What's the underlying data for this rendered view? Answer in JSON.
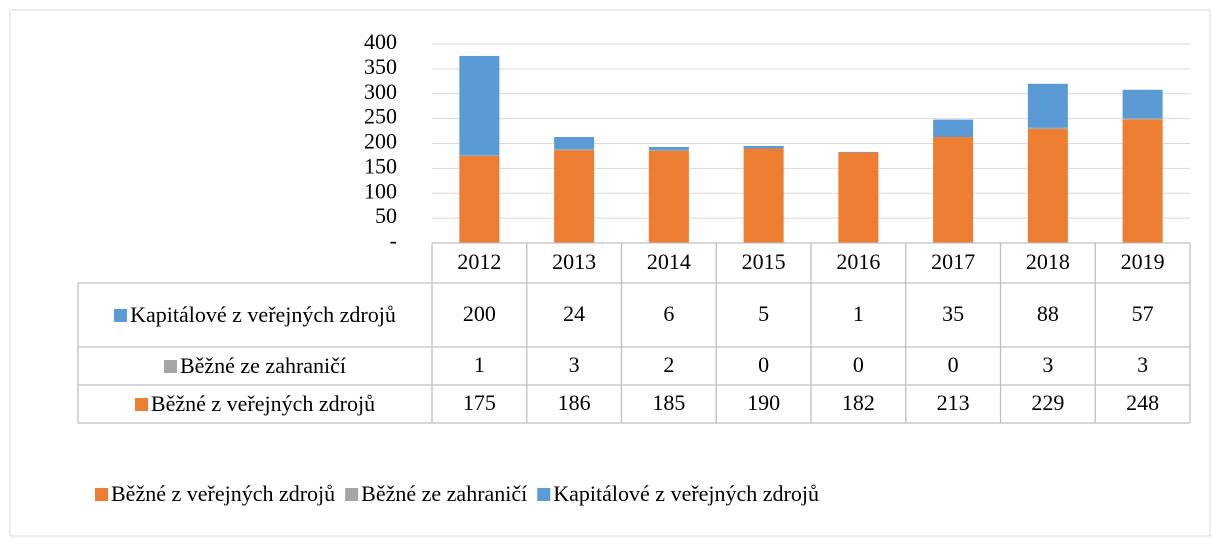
{
  "chart_data": {
    "type": "bar",
    "stacked": true,
    "categories": [
      "2012",
      "2013",
      "2014",
      "2015",
      "2016",
      "2017",
      "2018",
      "2019"
    ],
    "series": [
      {
        "name": "Běžné z veřejných zdrojů",
        "color": "#ED7D31",
        "values": [
          175,
          186,
          185,
          190,
          182,
          213,
          229,
          248
        ]
      },
      {
        "name": "Běžné ze zahraničí",
        "color": "#A5A5A5",
        "values": [
          1,
          3,
          2,
          0,
          0,
          0,
          3,
          3
        ]
      },
      {
        "name": "Kapitálové z veřejných zdrojů",
        "color": "#5B9BD5",
        "values": [
          200,
          24,
          6,
          5,
          1,
          35,
          88,
          57
        ]
      }
    ],
    "ylim": [
      0,
      400
    ],
    "yticks": [
      {
        "value": 0,
        "label": "-"
      },
      50,
      100,
      150,
      200,
      250,
      300,
      350,
      400
    ],
    "grid": true,
    "data_table": true,
    "legend": "bottom"
  }
}
